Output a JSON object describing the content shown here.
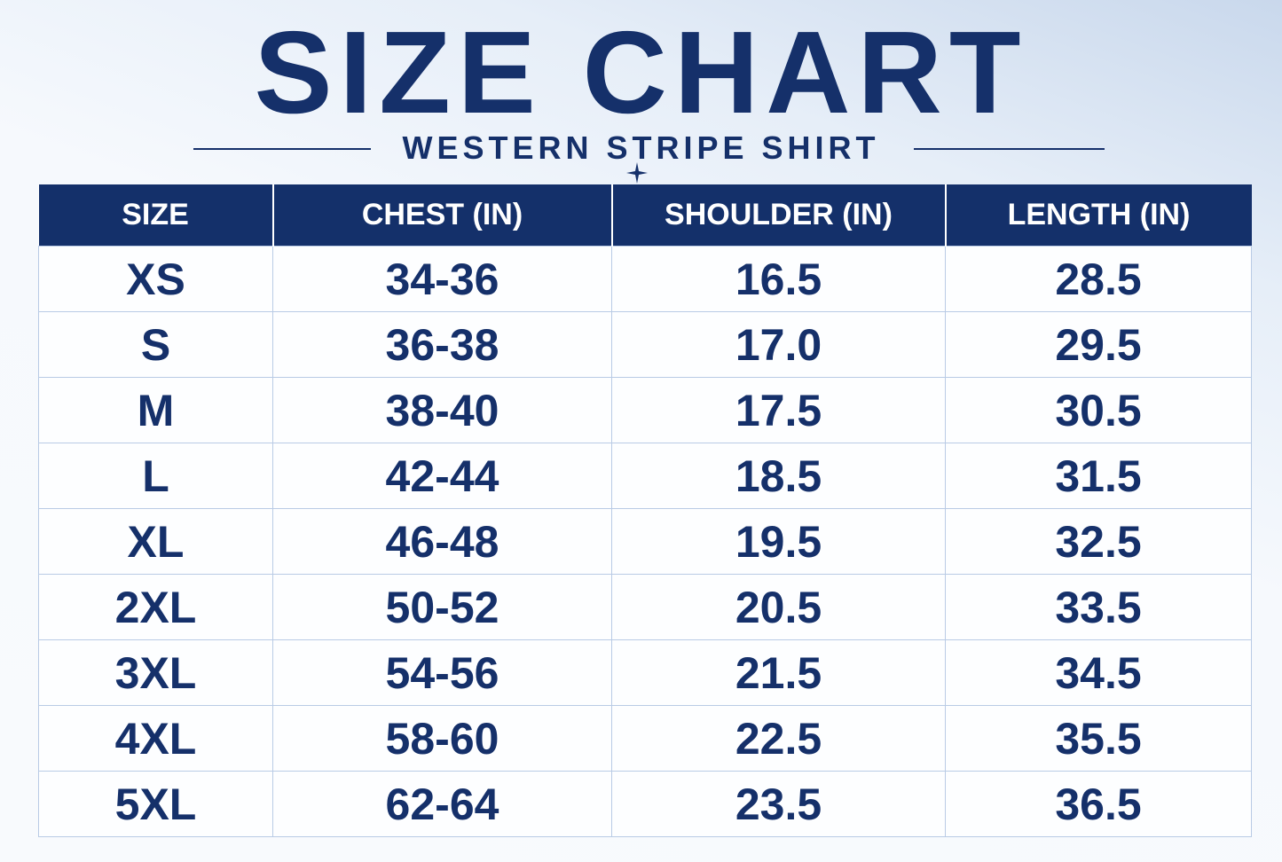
{
  "header": {
    "title": "SIZE CHART",
    "subtitle": "WESTERN STRIPE SHIRT"
  },
  "table": {
    "columns": [
      "SIZE",
      "CHEST (IN)",
      "SHOULDER (IN)",
      "LENGTH (IN)"
    ],
    "rows": [
      [
        "XS",
        "34-36",
        "16.5",
        "28.5"
      ],
      [
        "S",
        "36-38",
        "17.0",
        "29.5"
      ],
      [
        "M",
        "38-40",
        "17.5",
        "30.5"
      ],
      [
        "L",
        "42-44",
        "18.5",
        "31.5"
      ],
      [
        "XL",
        "46-48",
        "19.5",
        "32.5"
      ],
      [
        "2XL",
        "50-52",
        "20.5",
        "33.5"
      ],
      [
        "3XL",
        "54-56",
        "21.5",
        "34.5"
      ],
      [
        "4XL",
        "58-60",
        "22.5",
        "35.5"
      ],
      [
        "5XL",
        "62-64",
        "23.5",
        "36.5"
      ]
    ]
  }
}
